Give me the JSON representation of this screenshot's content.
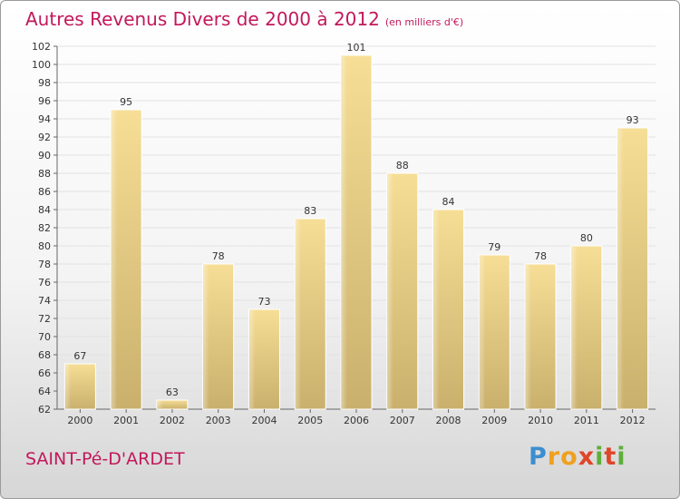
{
  "title": "Autres Revenus Divers de 2000 à 2012",
  "unit": "(en milliers d'€)",
  "place": "SAINT-Pé-D'ARDET",
  "brand": "Proxiti",
  "colors": {
    "title": "#c2185b",
    "bar_light": "#f6de96",
    "bar_dark": "#c9b06c"
  },
  "chart_data": {
    "type": "bar",
    "categories": [
      "2000",
      "2001",
      "2002",
      "2003",
      "2004",
      "2005",
      "2006",
      "2007",
      "2008",
      "2009",
      "2010",
      "2011",
      "2012"
    ],
    "values": [
      67,
      95,
      63,
      78,
      73,
      83,
      101,
      88,
      84,
      79,
      78,
      80,
      93
    ],
    "ylim": [
      62,
      102
    ],
    "yticks": [
      62,
      64,
      66,
      68,
      70,
      72,
      74,
      76,
      78,
      80,
      82,
      84,
      86,
      88,
      90,
      92,
      94,
      96,
      98,
      100,
      102
    ],
    "grid": true
  }
}
